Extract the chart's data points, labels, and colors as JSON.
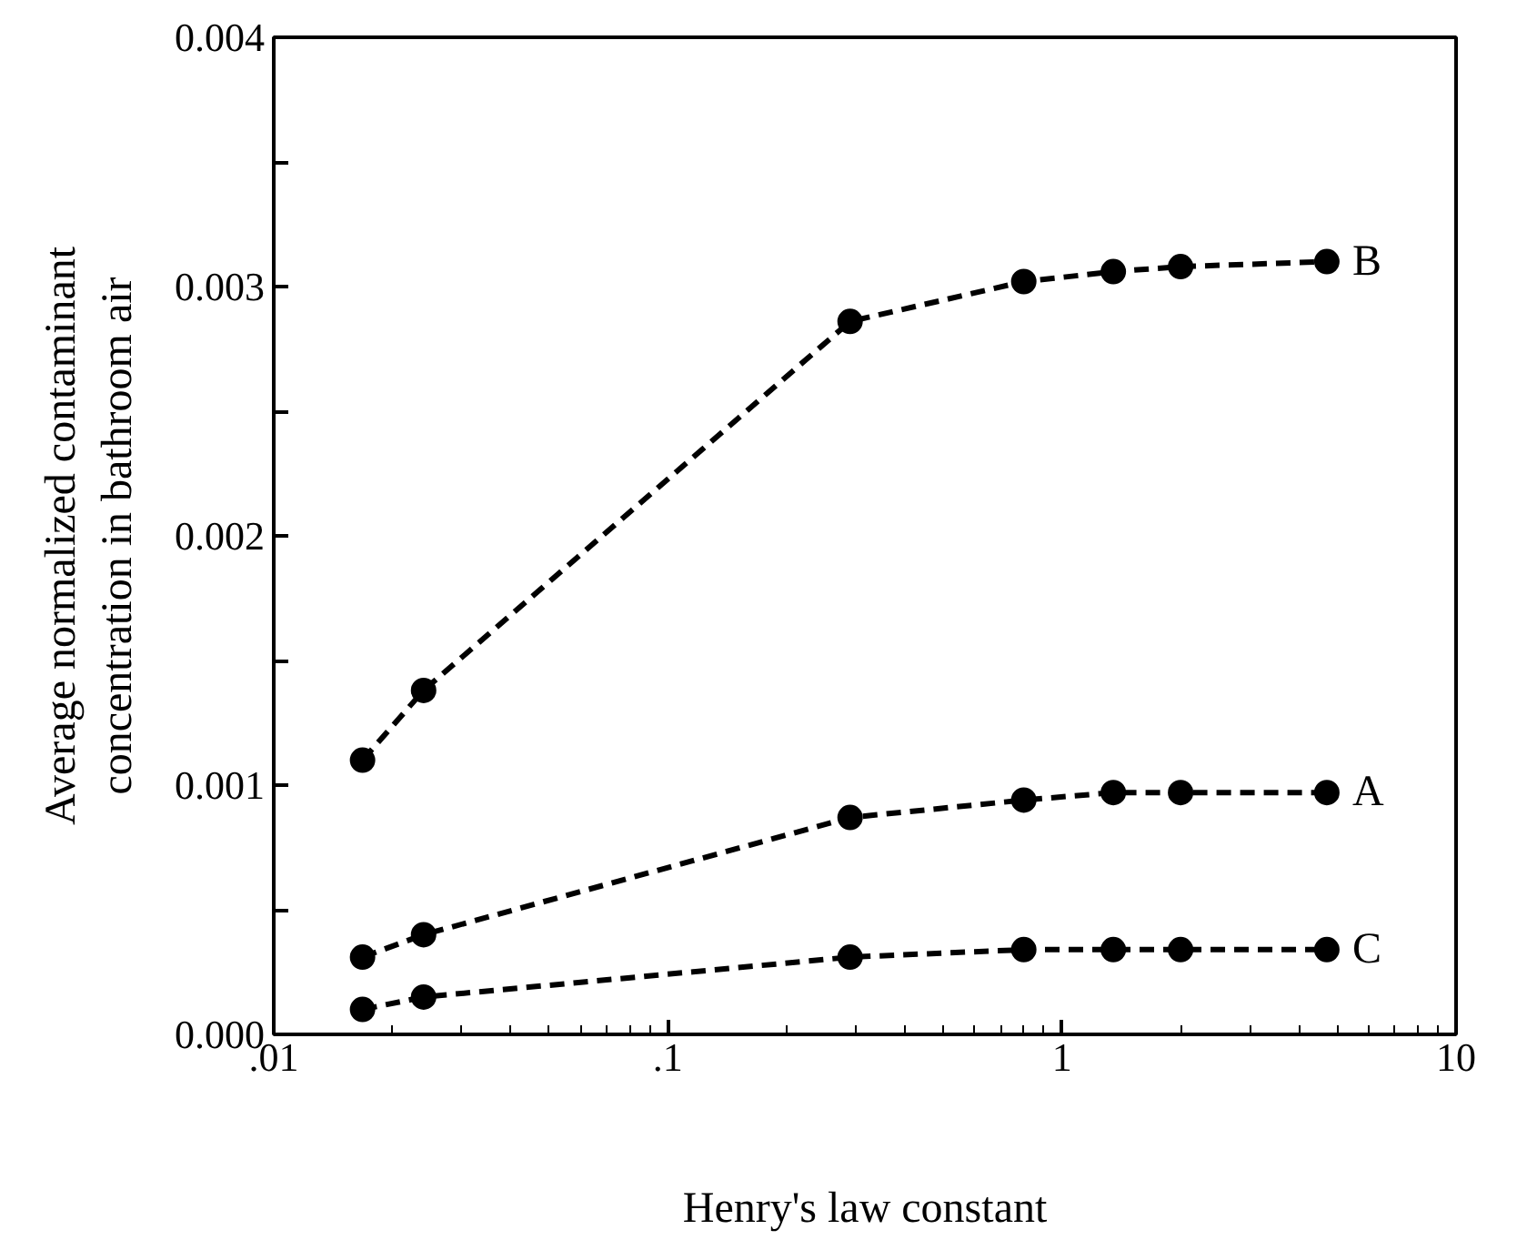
{
  "chart_data": {
    "type": "line",
    "xlabel": "Henry's law constant",
    "ylabel": "Average normalized contaminant\nconcentration in bathroom air",
    "x": [
      0.0168,
      0.024,
      0.29,
      0.8,
      1.35,
      2.0,
      4.7
    ],
    "series": [
      {
        "name": "B",
        "color": "#000000",
        "values": [
          0.0011,
          0.00138,
          0.00286,
          0.00302,
          0.00306,
          0.00308,
          0.0031
        ]
      },
      {
        "name": "A",
        "color": "#000000",
        "values": [
          0.00031,
          0.0004,
          0.00087,
          0.00094,
          0.00097,
          0.00097,
          0.00097
        ]
      },
      {
        "name": "C",
        "color": "#000000",
        "values": [
          0.0001,
          0.00015,
          0.00031,
          0.00034,
          0.00034,
          0.00034,
          0.00034
        ]
      }
    ],
    "log": "x",
    "xlim": [
      0.01,
      10
    ],
    "xticks": [
      {
        "value": 0.01,
        "label": ".01"
      },
      {
        "value": 0.1,
        "label": ".1"
      },
      1,
      10
    ],
    "ylim": [
      0,
      0.004
    ],
    "yticks": [
      {
        "value": 0,
        "label": "0.000"
      },
      {
        "value": 0.0005,
        "label": null
      },
      {
        "value": 0.001,
        "label": "0.001"
      },
      {
        "value": 0.0015,
        "label": null
      },
      {
        "value": 0.002,
        "label": "0.002"
      },
      {
        "value": 0.0025,
        "label": null
      },
      {
        "value": 0.003,
        "label": "0.003"
      },
      {
        "value": 0.0035,
        "label": null
      },
      {
        "value": 0.004,
        "label": "0.004"
      }
    ],
    "marker": "circle",
    "line_style": "dashed",
    "grid": false
  }
}
